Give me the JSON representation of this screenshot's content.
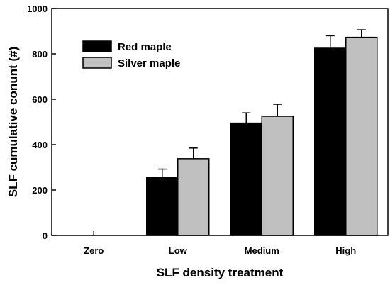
{
  "chart_data": {
    "type": "bar",
    "categories": [
      "Zero",
      "Low",
      "Medium",
      "High"
    ],
    "series": [
      {
        "name": "Red maple",
        "values": [
          0,
          257,
          495,
          825
        ],
        "errors": [
          0,
          35,
          45,
          55
        ],
        "color": "#000000"
      },
      {
        "name": "Silver maple",
        "values": [
          0,
          338,
          525,
          873
        ],
        "errors": [
          0,
          47,
          53,
          33
        ],
        "color": "#c0c0c0"
      }
    ],
    "xlabel": "SLF density treatment",
    "ylabel": "SLF cumulative conunt (#)",
    "ylim": [
      0,
      1000
    ],
    "yticks": [
      0,
      200,
      400,
      600,
      800,
      1000
    ],
    "legend_position": "top-left",
    "grid": false
  }
}
